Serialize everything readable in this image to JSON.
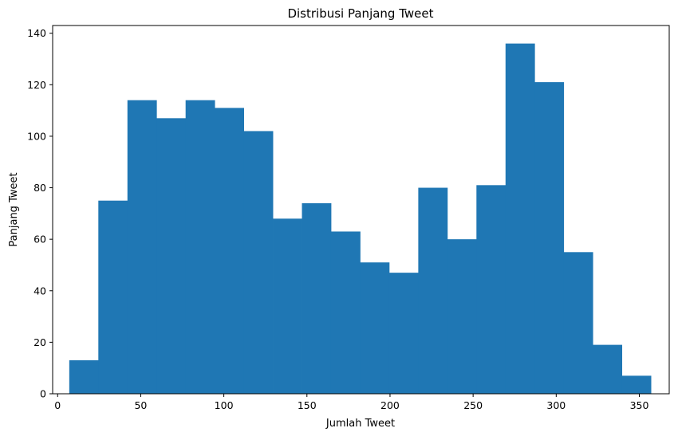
{
  "chart_data": {
    "type": "bar",
    "title": "Distribusi Panjang Tweet",
    "xlabel": "Jumlah Tweet",
    "ylabel": "Panjang Tweet",
    "bar_color": "#1f77b4",
    "xlim": [
      -3,
      368
    ],
    "ylim": [
      0,
      143
    ],
    "x_ticks": [
      0,
      50,
      100,
      150,
      200,
      250,
      300,
      350
    ],
    "y_ticks": [
      0,
      20,
      40,
      60,
      80,
      100,
      120,
      140
    ],
    "bin_edges": [
      7,
      24.5,
      42,
      59.5,
      77,
      94.5,
      112,
      129.5,
      147,
      164.5,
      182,
      199.5,
      217,
      234.5,
      252,
      269.5,
      287,
      304.5,
      322,
      339.5,
      357
    ],
    "values": [
      13,
      75,
      114,
      107,
      114,
      111,
      102,
      68,
      74,
      63,
      51,
      47,
      80,
      60,
      81,
      136,
      121,
      55,
      19,
      7
    ],
    "grid": false
  }
}
